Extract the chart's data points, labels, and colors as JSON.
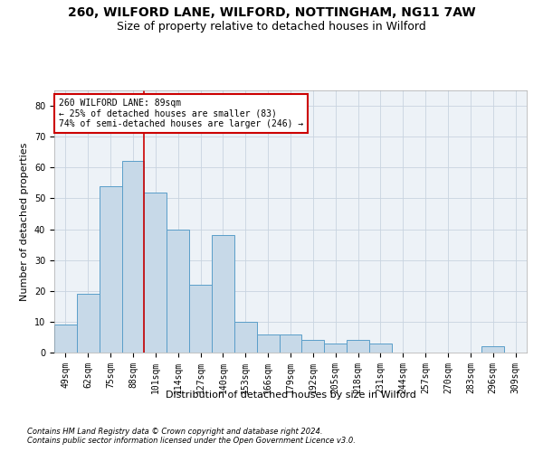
{
  "title1": "260, WILFORD LANE, WILFORD, NOTTINGHAM, NG11 7AW",
  "title2": "Size of property relative to detached houses in Wilford",
  "xlabel": "Distribution of detached houses by size in Wilford",
  "ylabel": "Number of detached properties",
  "footer1": "Contains HM Land Registry data © Crown copyright and database right 2024.",
  "footer2": "Contains public sector information licensed under the Open Government Licence v3.0.",
  "categories": [
    "49sqm",
    "62sqm",
    "75sqm",
    "88sqm",
    "101sqm",
    "114sqm",
    "127sqm",
    "140sqm",
    "153sqm",
    "166sqm",
    "179sqm",
    "192sqm",
    "205sqm",
    "218sqm",
    "231sqm",
    "244sqm",
    "257sqm",
    "270sqm",
    "283sqm",
    "296sqm",
    "309sqm"
  ],
  "values": [
    9,
    19,
    54,
    62,
    52,
    40,
    22,
    38,
    10,
    6,
    6,
    4,
    3,
    4,
    3,
    0,
    0,
    0,
    0,
    2,
    0
  ],
  "bar_color": "#c7d9e8",
  "bar_edge_color": "#5a9ec9",
  "vline_x": 3.5,
  "vline_color": "#cc0000",
  "annotation_text": "260 WILFORD LANE: 89sqm\n← 25% of detached houses are smaller (83)\n74% of semi-detached houses are larger (246) →",
  "annotation_box_color": "white",
  "annotation_box_edge_color": "#cc0000",
  "ylim": [
    0,
    85
  ],
  "yticks": [
    0,
    10,
    20,
    30,
    40,
    50,
    60,
    70,
    80
  ],
  "grid_color": "#c8d4e0",
  "bg_color": "#edf2f7",
  "title_fontsize": 10,
  "subtitle_fontsize": 9,
  "axis_label_fontsize": 8,
  "tick_fontsize": 7,
  "footer_fontsize": 6
}
